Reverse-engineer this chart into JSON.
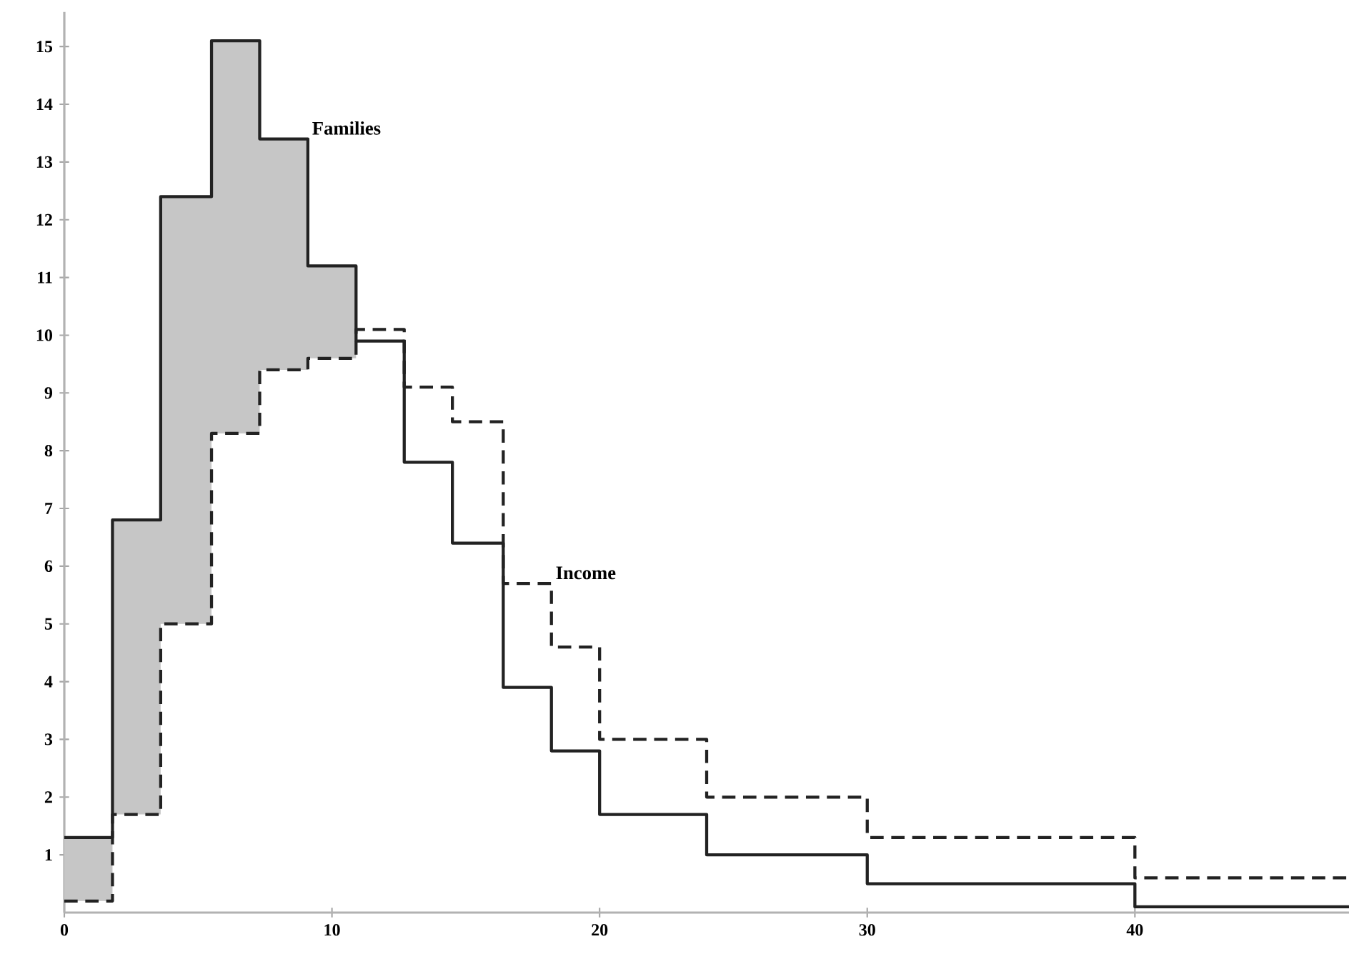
{
  "chart_data": {
    "type": "step",
    "x": [
      0,
      1.8,
      3.6,
      5.5,
      7.3,
      9.1,
      10.9,
      12.7,
      14.5,
      16.4,
      18.2,
      20,
      24,
      30,
      40,
      48
    ],
    "series": [
      {
        "name": "Families",
        "color": "#222222",
        "line_style": "solid",
        "values": [
          1.3,
          6.8,
          12.4,
          15.1,
          13.4,
          11.2,
          9.9,
          7.8,
          6.4,
          3.9,
          2.8,
          1.7,
          1.0,
          0.5,
          0.1,
          0.1
        ],
        "lower": [
          0.2,
          1.7,
          5.0,
          8.3,
          9.4,
          9.6,
          9.6,
          null,
          null,
          null,
          null,
          null,
          null,
          null,
          null,
          null
        ],
        "upper": [
          1.3,
          6.8,
          12.4,
          15.1,
          13.4,
          11.2,
          11.2,
          null,
          null,
          null,
          null,
          null,
          null,
          null,
          null,
          null
        ]
      },
      {
        "name": "Income",
        "color": "#222222",
        "line_style": "dashed",
        "values": [
          0.2,
          1.7,
          5.0,
          8.3,
          9.4,
          9.6,
          10.1,
          9.1,
          8.5,
          5.7,
          4.6,
          3.0,
          2.0,
          1.3,
          0.6,
          0.6
        ]
      }
    ],
    "xlim": [
      0,
      48
    ],
    "ylim": [
      0,
      15.6
    ],
    "xticks": [
      0,
      10,
      20,
      30,
      40
    ],
    "yticks": [
      1,
      2,
      3,
      4,
      5,
      6,
      7,
      8,
      9,
      10,
      11,
      12,
      13,
      14,
      15
    ]
  }
}
